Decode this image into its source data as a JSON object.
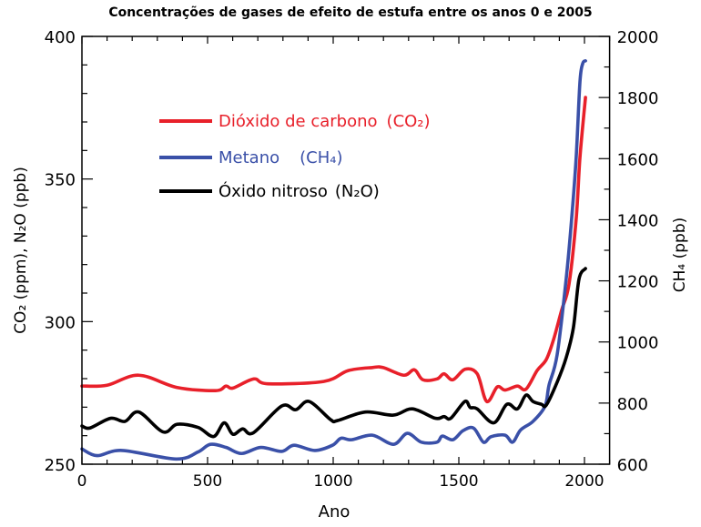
{
  "chart_data": {
    "type": "line",
    "title": "Concentrações de gases de efeito de estufa entre os anos 0 e 2005",
    "xlabel": "Ano",
    "ylabel_left": "CO₂ (ppm), N₂O (ppb)",
    "ylabel_right": "CH₄ (ppb)",
    "xlim": [
      0,
      2100
    ],
    "ylim_left": [
      250,
      400
    ],
    "ylim_right": [
      600,
      2000
    ],
    "x_ticks": [
      0,
      500,
      1000,
      1500,
      2000
    ],
    "y_ticks_left": [
      250,
      300,
      350,
      400
    ],
    "y_ticks_right": [
      600,
      800,
      1000,
      1200,
      1400,
      1600,
      1800,
      2000
    ],
    "grid": false,
    "legend_placement": "upper-left inside",
    "series": [
      {
        "name": "Dióxido de carbono (CO₂)",
        "axis": "left",
        "color": "#e8202a",
        "x": [
          0,
          100,
          226,
          379,
          532,
          573,
          601,
          684,
          740,
          962,
          1059,
          1156,
          1198,
          1281,
          1323,
          1357,
          1413,
          1441,
          1476,
          1525,
          1573,
          1611,
          1653,
          1684,
          1733,
          1767,
          1812,
          1848,
          1877,
          1909,
          1938,
          1967,
          1982,
          2004
        ],
        "y": [
          277.4,
          277.7,
          281.2,
          276.9,
          275.8,
          277.4,
          276.7,
          279.9,
          278.2,
          279,
          282.8,
          283.9,
          283.9,
          281.2,
          283.1,
          279.6,
          279.9,
          281.7,
          279.6,
          283.3,
          281.7,
          272,
          277.1,
          276,
          277.4,
          276.3,
          282.9,
          286.7,
          293.7,
          304,
          312.9,
          336,
          357.5,
          378.6
        ]
      },
      {
        "name": "Metano (CH₄)",
        "axis": "right",
        "color": "#3a50a8",
        "x": [
          0,
          60,
          160,
          374,
          462,
          511,
          573,
          635,
          712,
          795,
          844,
          927,
          997,
          1031,
          1073,
          1156,
          1240,
          1295,
          1351,
          1413,
          1434,
          1476,
          1517,
          1559,
          1598,
          1628,
          1684,
          1714,
          1746,
          1795,
          1843,
          1859,
          1891,
          1927,
          1949,
          1967,
          1982,
          1993,
          2004
        ],
        "y": [
          650,
          628,
          645,
          617,
          640,
          665,
          655,
          635,
          655,
          642,
          662,
          645,
          662,
          685,
          680,
          695,
          665,
          701,
          672,
          672,
          692,
          680,
          710,
          718,
          672,
          690,
          695,
          672,
          712,
          740,
          790,
          859,
          957,
          1205,
          1404,
          1604,
          1851,
          1911,
          1920
        ]
      },
      {
        "name": "Óxido nitroso (N₂O)",
        "axis": "left",
        "color": "#000000",
        "x": [
          0,
          32,
          114,
          171,
          226,
          323,
          379,
          462,
          524,
          566,
          601,
          640,
          682,
          795,
          851,
          904,
          990,
          1017,
          1128,
          1239,
          1315,
          1406,
          1441,
          1468,
          1524,
          1545,
          1573,
          1639,
          1691,
          1733,
          1767,
          1795,
          1829,
          1848,
          1891,
          1927,
          1956,
          1978,
          2004
        ],
        "y": [
          263.4,
          262.7,
          266.1,
          265,
          268.3,
          261.3,
          264,
          262.9,
          259.7,
          264.5,
          260.5,
          262.4,
          261,
          270.4,
          269.1,
          272,
          265.6,
          265.3,
          268.3,
          267.2,
          269.4,
          266.1,
          266.7,
          266.1,
          272,
          269.9,
          269.4,
          264.5,
          271,
          269.4,
          274.2,
          272,
          271,
          270.7,
          278.7,
          287.3,
          297.9,
          314.8,
          318.6
        ]
      }
    ]
  },
  "legend": {
    "co2": {
      "label": "Dióxido de carbono",
      "formula": "(CO₂)"
    },
    "ch4": {
      "label": "Metano",
      "formula": "(CH₄)"
    },
    "n2o": {
      "label": "Óxido nitroso",
      "formula": "(N₂O)"
    }
  }
}
